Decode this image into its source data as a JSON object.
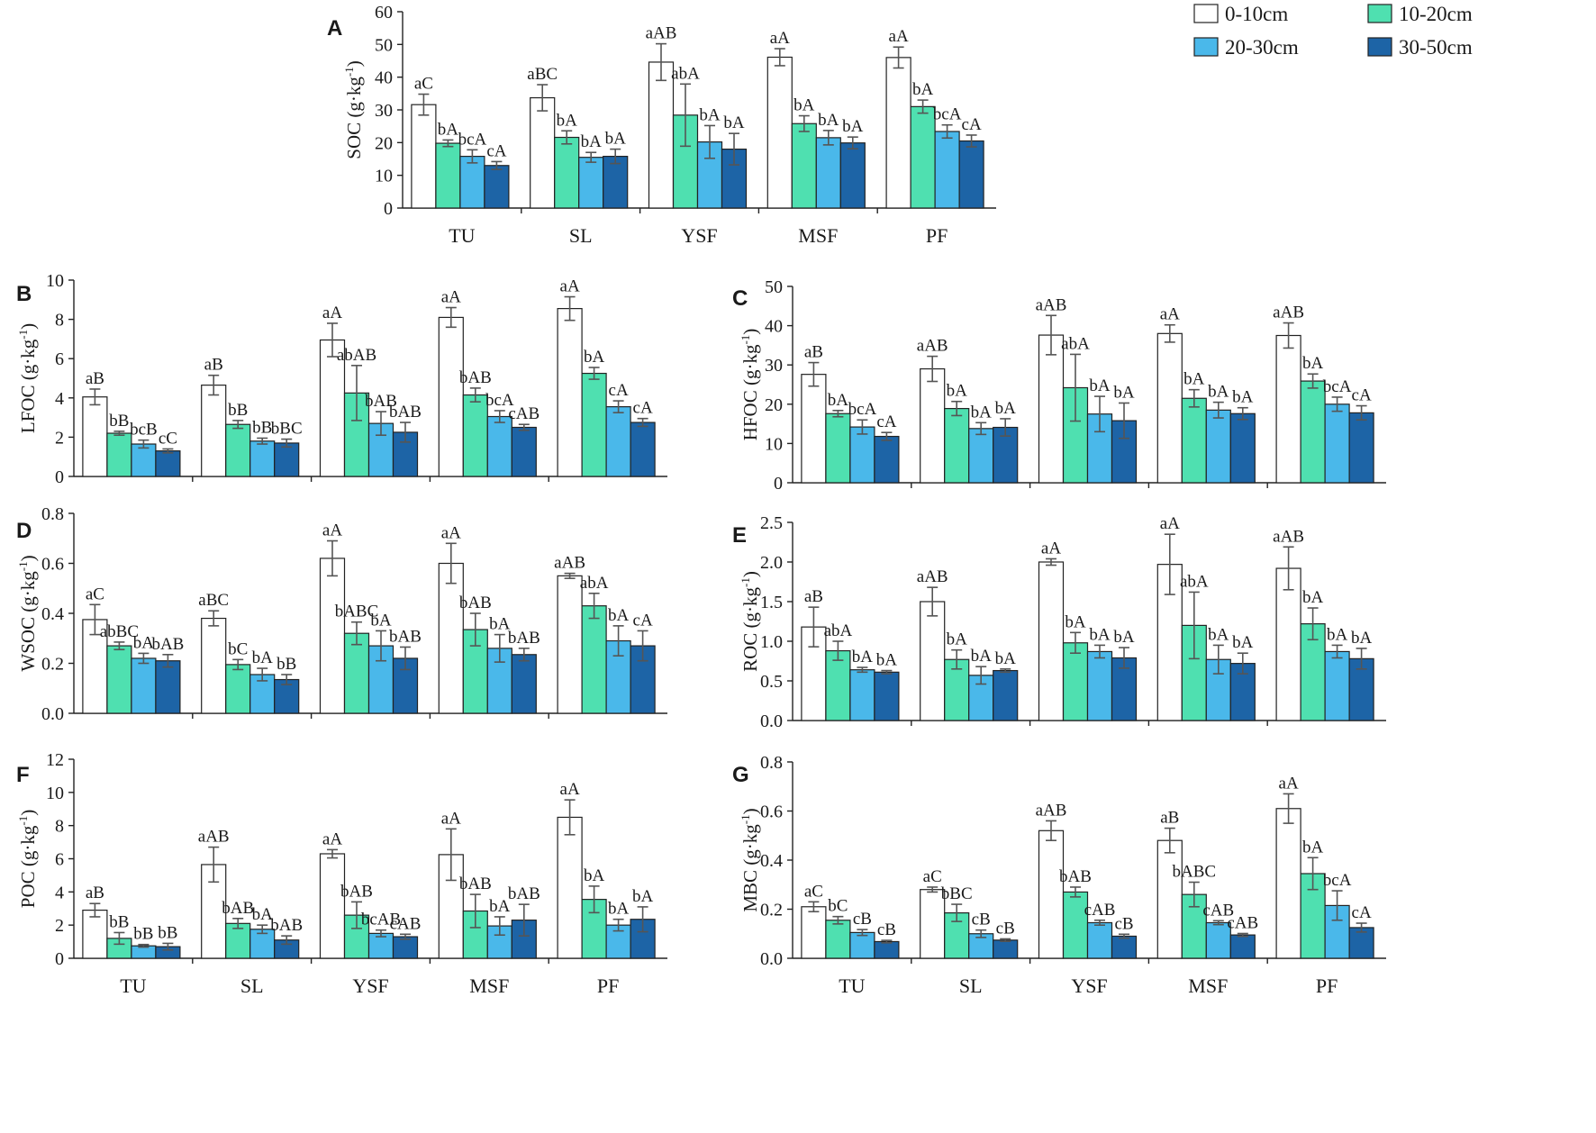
{
  "legend": {
    "items": [
      {
        "label": "0-10cm",
        "color": "#ffffff"
      },
      {
        "label": "10-20cm",
        "color": "#4fe0b0"
      },
      {
        "label": "20-30cm",
        "color": "#4ab8ea"
      },
      {
        "label": "30-50cm",
        "color": "#1d64a6"
      }
    ]
  },
  "chart_data": [
    {
      "panel": "A",
      "type": "bar",
      "ylabel": "SOC (g·kg",
      "ylabel_sup": "-1",
      "ylabel_end": ")",
      "ylim": [
        0,
        60
      ],
      "yticks": [
        0,
        10,
        20,
        30,
        40,
        50,
        60
      ],
      "categories": [
        "TU",
        "SL",
        "YSF",
        "MSF",
        "PF"
      ],
      "show_xlabels": true,
      "series": [
        {
          "name": "0-10cm",
          "values": [
            31.6,
            33.7,
            44.6,
            46.1,
            46.0
          ],
          "errors": [
            3.2,
            4.0,
            5.6,
            2.6,
            3.2
          ],
          "labels": [
            "aC",
            "aBC",
            "aAB",
            "aA",
            "aA"
          ]
        },
        {
          "name": "10-20cm",
          "values": [
            19.8,
            21.6,
            28.4,
            25.8,
            31.0
          ],
          "errors": [
            1.0,
            2.0,
            9.5,
            2.4,
            2.0
          ],
          "labels": [
            "bA",
            "bA",
            "abA",
            "bA",
            "bA"
          ]
        },
        {
          "name": "20-30cm",
          "values": [
            15.8,
            15.5,
            20.2,
            21.5,
            23.4
          ],
          "errors": [
            2.0,
            1.5,
            5.0,
            2.2,
            2.0
          ],
          "labels": [
            "bcA",
            "bA",
            "bA",
            "bA",
            "bcA"
          ]
        },
        {
          "name": "30-50cm",
          "values": [
            13.0,
            15.8,
            18.0,
            19.9,
            20.5
          ],
          "errors": [
            1.2,
            2.2,
            4.8,
            1.8,
            1.8
          ],
          "labels": [
            "cA",
            "bA",
            "bA",
            "bA",
            "cA"
          ]
        }
      ]
    },
    {
      "panel": "B",
      "type": "bar",
      "ylabel": "LFOC (g·kg",
      "ylabel_sup": "-1",
      "ylabel_end": ")",
      "ylim": [
        0,
        10
      ],
      "yticks": [
        0,
        2,
        4,
        6,
        8,
        10
      ],
      "categories": [
        "TU",
        "SL",
        "YSF",
        "MSF",
        "PF"
      ],
      "show_xlabels": false,
      "series": [
        {
          "name": "0-10cm",
          "values": [
            4.05,
            4.65,
            6.95,
            8.1,
            8.55
          ],
          "errors": [
            0.4,
            0.5,
            0.85,
            0.5,
            0.6
          ],
          "labels": [
            "aB",
            "aB",
            "aA",
            "aA",
            "aA"
          ]
        },
        {
          "name": "10-20cm",
          "values": [
            2.2,
            2.65,
            4.25,
            4.15,
            5.25
          ],
          "errors": [
            0.1,
            0.2,
            1.4,
            0.35,
            0.3
          ],
          "labels": [
            "bB",
            "bB",
            "abAB",
            "bAB",
            "bA"
          ]
        },
        {
          "name": "20-30cm",
          "values": [
            1.65,
            1.8,
            2.7,
            3.05,
            3.55
          ],
          "errors": [
            0.2,
            0.15,
            0.6,
            0.3,
            0.3
          ],
          "labels": [
            "bcB",
            "bB",
            "bAB",
            "bcA",
            "cA"
          ]
        },
        {
          "name": "30-50cm",
          "values": [
            1.3,
            1.7,
            2.25,
            2.5,
            2.75
          ],
          "errors": [
            0.1,
            0.2,
            0.5,
            0.15,
            0.2
          ],
          "labels": [
            "cC",
            "bBC",
            "bAB",
            "cAB",
            "cA"
          ]
        }
      ]
    },
    {
      "panel": "C",
      "type": "bar",
      "ylabel": "HFOC (g·kg",
      "ylabel_sup": "-1",
      "ylabel_end": ")",
      "ylim": [
        0,
        50
      ],
      "yticks": [
        0,
        10,
        20,
        30,
        40,
        50
      ],
      "categories": [
        "TU",
        "SL",
        "YSF",
        "MSF",
        "PF"
      ],
      "show_xlabels": false,
      "series": [
        {
          "name": "0-10cm",
          "values": [
            27.6,
            29.0,
            37.6,
            38.0,
            37.5
          ],
          "errors": [
            3.0,
            3.2,
            5.0,
            2.2,
            3.2
          ],
          "labels": [
            "aB",
            "aAB",
            "aAB",
            "aA",
            "aAB"
          ]
        },
        {
          "name": "10-20cm",
          "values": [
            17.6,
            18.9,
            24.2,
            21.5,
            25.9
          ],
          "errors": [
            0.8,
            1.8,
            8.5,
            2.2,
            1.8
          ],
          "labels": [
            "bA",
            "bA",
            "abA",
            "bA",
            "bA"
          ]
        },
        {
          "name": "20-30cm",
          "values": [
            14.2,
            13.8,
            17.5,
            18.5,
            20.0
          ],
          "errors": [
            1.8,
            1.5,
            4.5,
            2.0,
            1.8
          ],
          "labels": [
            "bcA",
            "bA",
            "bA",
            "bA",
            "bcA"
          ]
        },
        {
          "name": "30-50cm",
          "values": [
            11.8,
            14.1,
            15.8,
            17.6,
            17.8
          ],
          "errors": [
            1.0,
            2.2,
            4.5,
            1.5,
            1.8
          ],
          "labels": [
            "cA",
            "bA",
            "bA",
            "bA",
            "cA"
          ]
        }
      ]
    },
    {
      "panel": "D",
      "type": "bar",
      "ylabel": "WSOC (g·kg",
      "ylabel_sup": "-1",
      "ylabel_end": ")",
      "ylim": [
        0,
        0.8
      ],
      "yticks": [
        0,
        0.2,
        0.4,
        0.6,
        0.8
      ],
      "decimals": 1,
      "categories": [
        "TU",
        "SL",
        "YSF",
        "MSF",
        "PF"
      ],
      "show_xlabels": false,
      "series": [
        {
          "name": "0-10cm",
          "values": [
            0.375,
            0.38,
            0.62,
            0.6,
            0.55
          ],
          "errors": [
            0.06,
            0.03,
            0.07,
            0.08,
            0.01
          ],
          "labels": [
            "aC",
            "aBC",
            "aA",
            "aA",
            "aAB"
          ]
        },
        {
          "name": "10-20cm",
          "values": [
            0.27,
            0.195,
            0.32,
            0.335,
            0.43
          ],
          "errors": [
            0.015,
            0.02,
            0.045,
            0.065,
            0.05
          ],
          "labels": [
            "abBC",
            "bC",
            "bABC",
            "bAB",
            "abA"
          ]
        },
        {
          "name": "20-30cm",
          "values": [
            0.22,
            0.155,
            0.27,
            0.26,
            0.29
          ],
          "errors": [
            0.02,
            0.025,
            0.06,
            0.055,
            0.06
          ],
          "labels": [
            "bA",
            "bA",
            "bA",
            "bA",
            "bA"
          ]
        },
        {
          "name": "30-50cm",
          "values": [
            0.21,
            0.135,
            0.22,
            0.235,
            0.27
          ],
          "errors": [
            0.025,
            0.02,
            0.045,
            0.025,
            0.06
          ],
          "labels": [
            "bAB",
            "bB",
            "bAB",
            "bAB",
            "cA"
          ]
        }
      ]
    },
    {
      "panel": "E",
      "type": "bar",
      "ylabel": "ROC (g·kg",
      "ylabel_sup": "-1",
      "ylabel_end": ")",
      "ylim": [
        0,
        2.5
      ],
      "yticks": [
        0,
        0.5,
        1.0,
        1.5,
        2.0,
        2.5
      ],
      "decimals": 1,
      "categories": [
        "TU",
        "SL",
        "YSF",
        "MSF",
        "PF"
      ],
      "show_xlabels": false,
      "series": [
        {
          "name": "0-10cm",
          "values": [
            1.18,
            1.5,
            2.0,
            1.97,
            1.92
          ],
          "errors": [
            0.25,
            0.18,
            0.04,
            0.38,
            0.27
          ],
          "labels": [
            "aB",
            "aAB",
            "aA",
            "aA",
            "aAB"
          ]
        },
        {
          "name": "10-20cm",
          "values": [
            0.88,
            0.77,
            0.98,
            1.2,
            1.22
          ],
          "errors": [
            0.12,
            0.12,
            0.13,
            0.42,
            0.2
          ],
          "labels": [
            "abA",
            "bA",
            "bA",
            "abA",
            "bA"
          ]
        },
        {
          "name": "20-30cm",
          "values": [
            0.64,
            0.57,
            0.87,
            0.77,
            0.87
          ],
          "errors": [
            0.03,
            0.11,
            0.08,
            0.18,
            0.08
          ],
          "labels": [
            "bA",
            "bA",
            "bA",
            "bA",
            "bA"
          ]
        },
        {
          "name": "30-50cm",
          "values": [
            0.61,
            0.63,
            0.79,
            0.72,
            0.78
          ],
          "errors": [
            0.02,
            0.02,
            0.13,
            0.13,
            0.13
          ],
          "labels": [
            "bA",
            "bA",
            "bA",
            "bA",
            "bA"
          ]
        }
      ]
    },
    {
      "panel": "F",
      "type": "bar",
      "ylabel": "POC (g·kg",
      "ylabel_sup": "-1",
      "ylabel_end": ")",
      "ylim": [
        0,
        12
      ],
      "yticks": [
        0,
        2,
        4,
        6,
        8,
        10,
        12
      ],
      "categories": [
        "TU",
        "SL",
        "YSF",
        "MSF",
        "PF"
      ],
      "show_xlabels": true,
      "series": [
        {
          "name": "0-10cm",
          "values": [
            2.9,
            5.65,
            6.3,
            6.25,
            8.5
          ],
          "errors": [
            0.4,
            1.05,
            0.25,
            1.55,
            1.05
          ],
          "labels": [
            "aB",
            "aAB",
            "aA",
            "aA",
            "aA"
          ]
        },
        {
          "name": "10-20cm",
          "values": [
            1.2,
            2.1,
            2.6,
            2.85,
            3.55
          ],
          "errors": [
            0.35,
            0.3,
            0.8,
            1.0,
            0.8
          ],
          "labels": [
            "bB",
            "bAB",
            "bAB",
            "bAB",
            "bA"
          ]
        },
        {
          "name": "20-30cm",
          "values": [
            0.75,
            1.75,
            1.5,
            1.95,
            2.0
          ],
          "errors": [
            0.08,
            0.25,
            0.2,
            0.55,
            0.35
          ],
          "labels": [
            "bB",
            "bA",
            "bcAB",
            "bA",
            "bA"
          ]
        },
        {
          "name": "30-50cm",
          "values": [
            0.7,
            1.1,
            1.3,
            2.3,
            2.35
          ],
          "errors": [
            0.2,
            0.25,
            0.15,
            0.95,
            0.75
          ],
          "labels": [
            "bB",
            "bAB",
            "cAB",
            "bAB",
            "bA"
          ]
        }
      ]
    },
    {
      "panel": "G",
      "type": "bar",
      "ylabel": "MBC (g·kg",
      "ylabel_sup": "-1",
      "ylabel_end": ")",
      "ylim": [
        0,
        0.8
      ],
      "yticks": [
        0,
        0.2,
        0.4,
        0.6,
        0.8
      ],
      "decimals": 1,
      "categories": [
        "TU",
        "SL",
        "YSF",
        "MSF",
        "PF"
      ],
      "show_xlabels": true,
      "series": [
        {
          "name": "0-10cm",
          "values": [
            0.21,
            0.28,
            0.52,
            0.48,
            0.61
          ],
          "errors": [
            0.02,
            0.01,
            0.04,
            0.05,
            0.06
          ],
          "labels": [
            "aC",
            "aC",
            "aAB",
            "aB",
            "aA"
          ]
        },
        {
          "name": "10-20cm",
          "values": [
            0.155,
            0.185,
            0.27,
            0.26,
            0.345
          ],
          "errors": [
            0.015,
            0.035,
            0.02,
            0.05,
            0.065
          ],
          "labels": [
            "bC",
            "bBC",
            "bAB",
            "bABC",
            "bA"
          ]
        },
        {
          "name": "20-30cm",
          "values": [
            0.105,
            0.1,
            0.145,
            0.145,
            0.215
          ],
          "errors": [
            0.012,
            0.015,
            0.01,
            0.008,
            0.06
          ],
          "labels": [
            "cB",
            "cB",
            "cAB",
            "cAB",
            "bcA"
          ]
        },
        {
          "name": "30-50cm",
          "values": [
            0.068,
            0.074,
            0.09,
            0.095,
            0.125
          ],
          "errors": [
            0.005,
            0.005,
            0.008,
            0.006,
            0.018
          ],
          "labels": [
            "cB",
            "cB",
            "cB",
            "cAB",
            "cA"
          ]
        }
      ]
    }
  ]
}
